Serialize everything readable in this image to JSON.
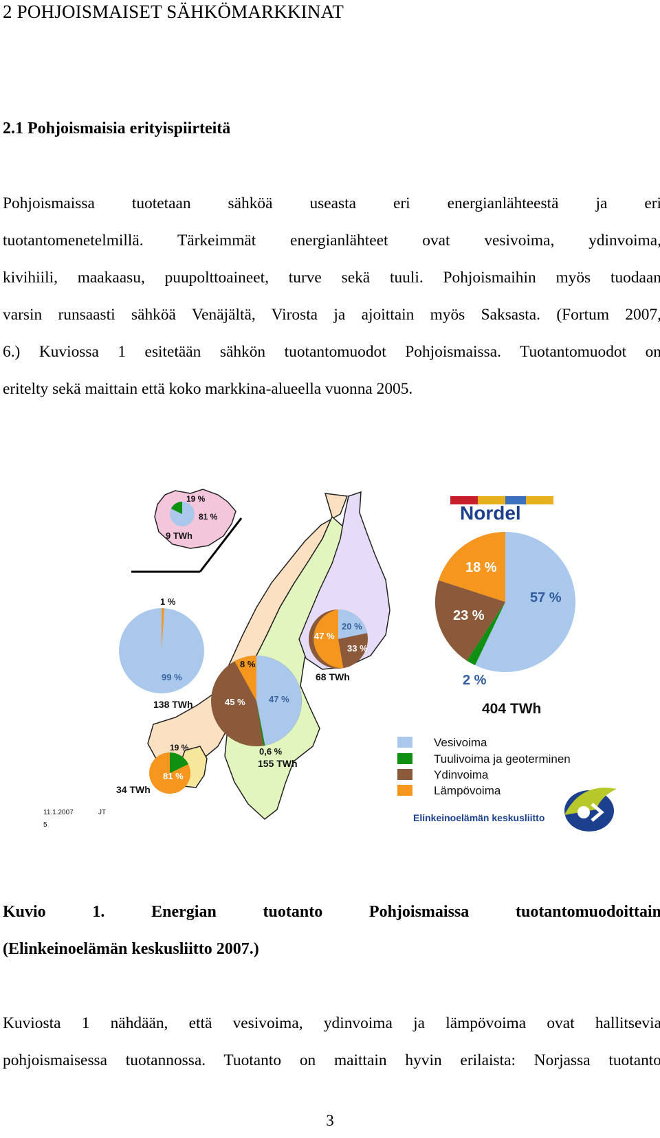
{
  "heading": "2 POHJOISMAISET SÄHKÖMARKKINAT",
  "subheading": "2.1 Pohjoismaisia erityispiirteitä",
  "paragraph1": {
    "lines": [
      "Pohjoismaissa tuotetaan sähköä useasta eri energianlähteestä ja eri",
      "tuotantomenetelmillä. Tärkeimmät energianlähteet ovat vesivoima, ydinvoima,",
      "kivihiili, maakaasu, puupolttoaineet, turve sekä tuuli. Pohjoismaihin myös tuodaan",
      "varsin runsaasti sähköä Venäjältä, Virosta ja ajoittain myös Saksasta. (Fortum 2007,",
      "6.) Kuviossa 1 esitetään sähkön tuotantomuodot Pohjoismaissa. Tuotantomuodot on",
      "eritelty sekä maittain että koko markkina-alueella vuonna 2005."
    ]
  },
  "figure": {
    "logo_text": "Nordel",
    "org_logo_text": "Elinkeinoelämän keskusliitto",
    "footer_date": "11.1.2007",
    "footer_initials": "JT",
    "footer_page": "5",
    "colors": {
      "vesivoima": "#a9c8ec",
      "tuulivoima": "#109010",
      "ydinvoima": "#8a5a3a",
      "lampovoima": "#f5961e"
    },
    "legend": [
      "Vesivoima",
      "Tuulivoima ja geoterminen",
      "Ydinvoima",
      "Lämpövoima"
    ],
    "pies": {
      "iceland": {
        "labels": [
          "19 %",
          "81 %"
        ],
        "total": "9 TWh"
      },
      "norway": {
        "labels": [
          "1 %",
          "99 %"
        ],
        "total": "138 TWh"
      },
      "finland": {
        "labels": [
          "47 %",
          "20 %",
          "33 %"
        ],
        "total": "68 TWh"
      },
      "sweden": {
        "labels": [
          "8 %",
          "45 %",
          "47 %",
          "0,6 %"
        ],
        "total": "155 TWh"
      },
      "denmark": {
        "labels": [
          "19 %",
          "81 %"
        ],
        "total": "34 TWh"
      },
      "total": {
        "labels": [
          "18 %",
          "57 %",
          "23 %",
          "2 %"
        ],
        "total": "404 TWh"
      }
    }
  },
  "caption": {
    "line1": "Kuvio 1. Energian tuotanto Pohjoismaissa tuotantomuodoittain",
    "line2": "(Elinkeinoelämän keskusliitto 2007.)"
  },
  "paragraph2": {
    "lines": [
      "Kuviosta 1 nähdään, että vesivoima, ydinvoima ja lämpövoima ovat hallitsevia",
      "pohjoismaisessa tuotannossa. Tuotanto on maittain hyvin erilaista: Norjassa tuotanto"
    ]
  },
  "page_number": "3"
}
